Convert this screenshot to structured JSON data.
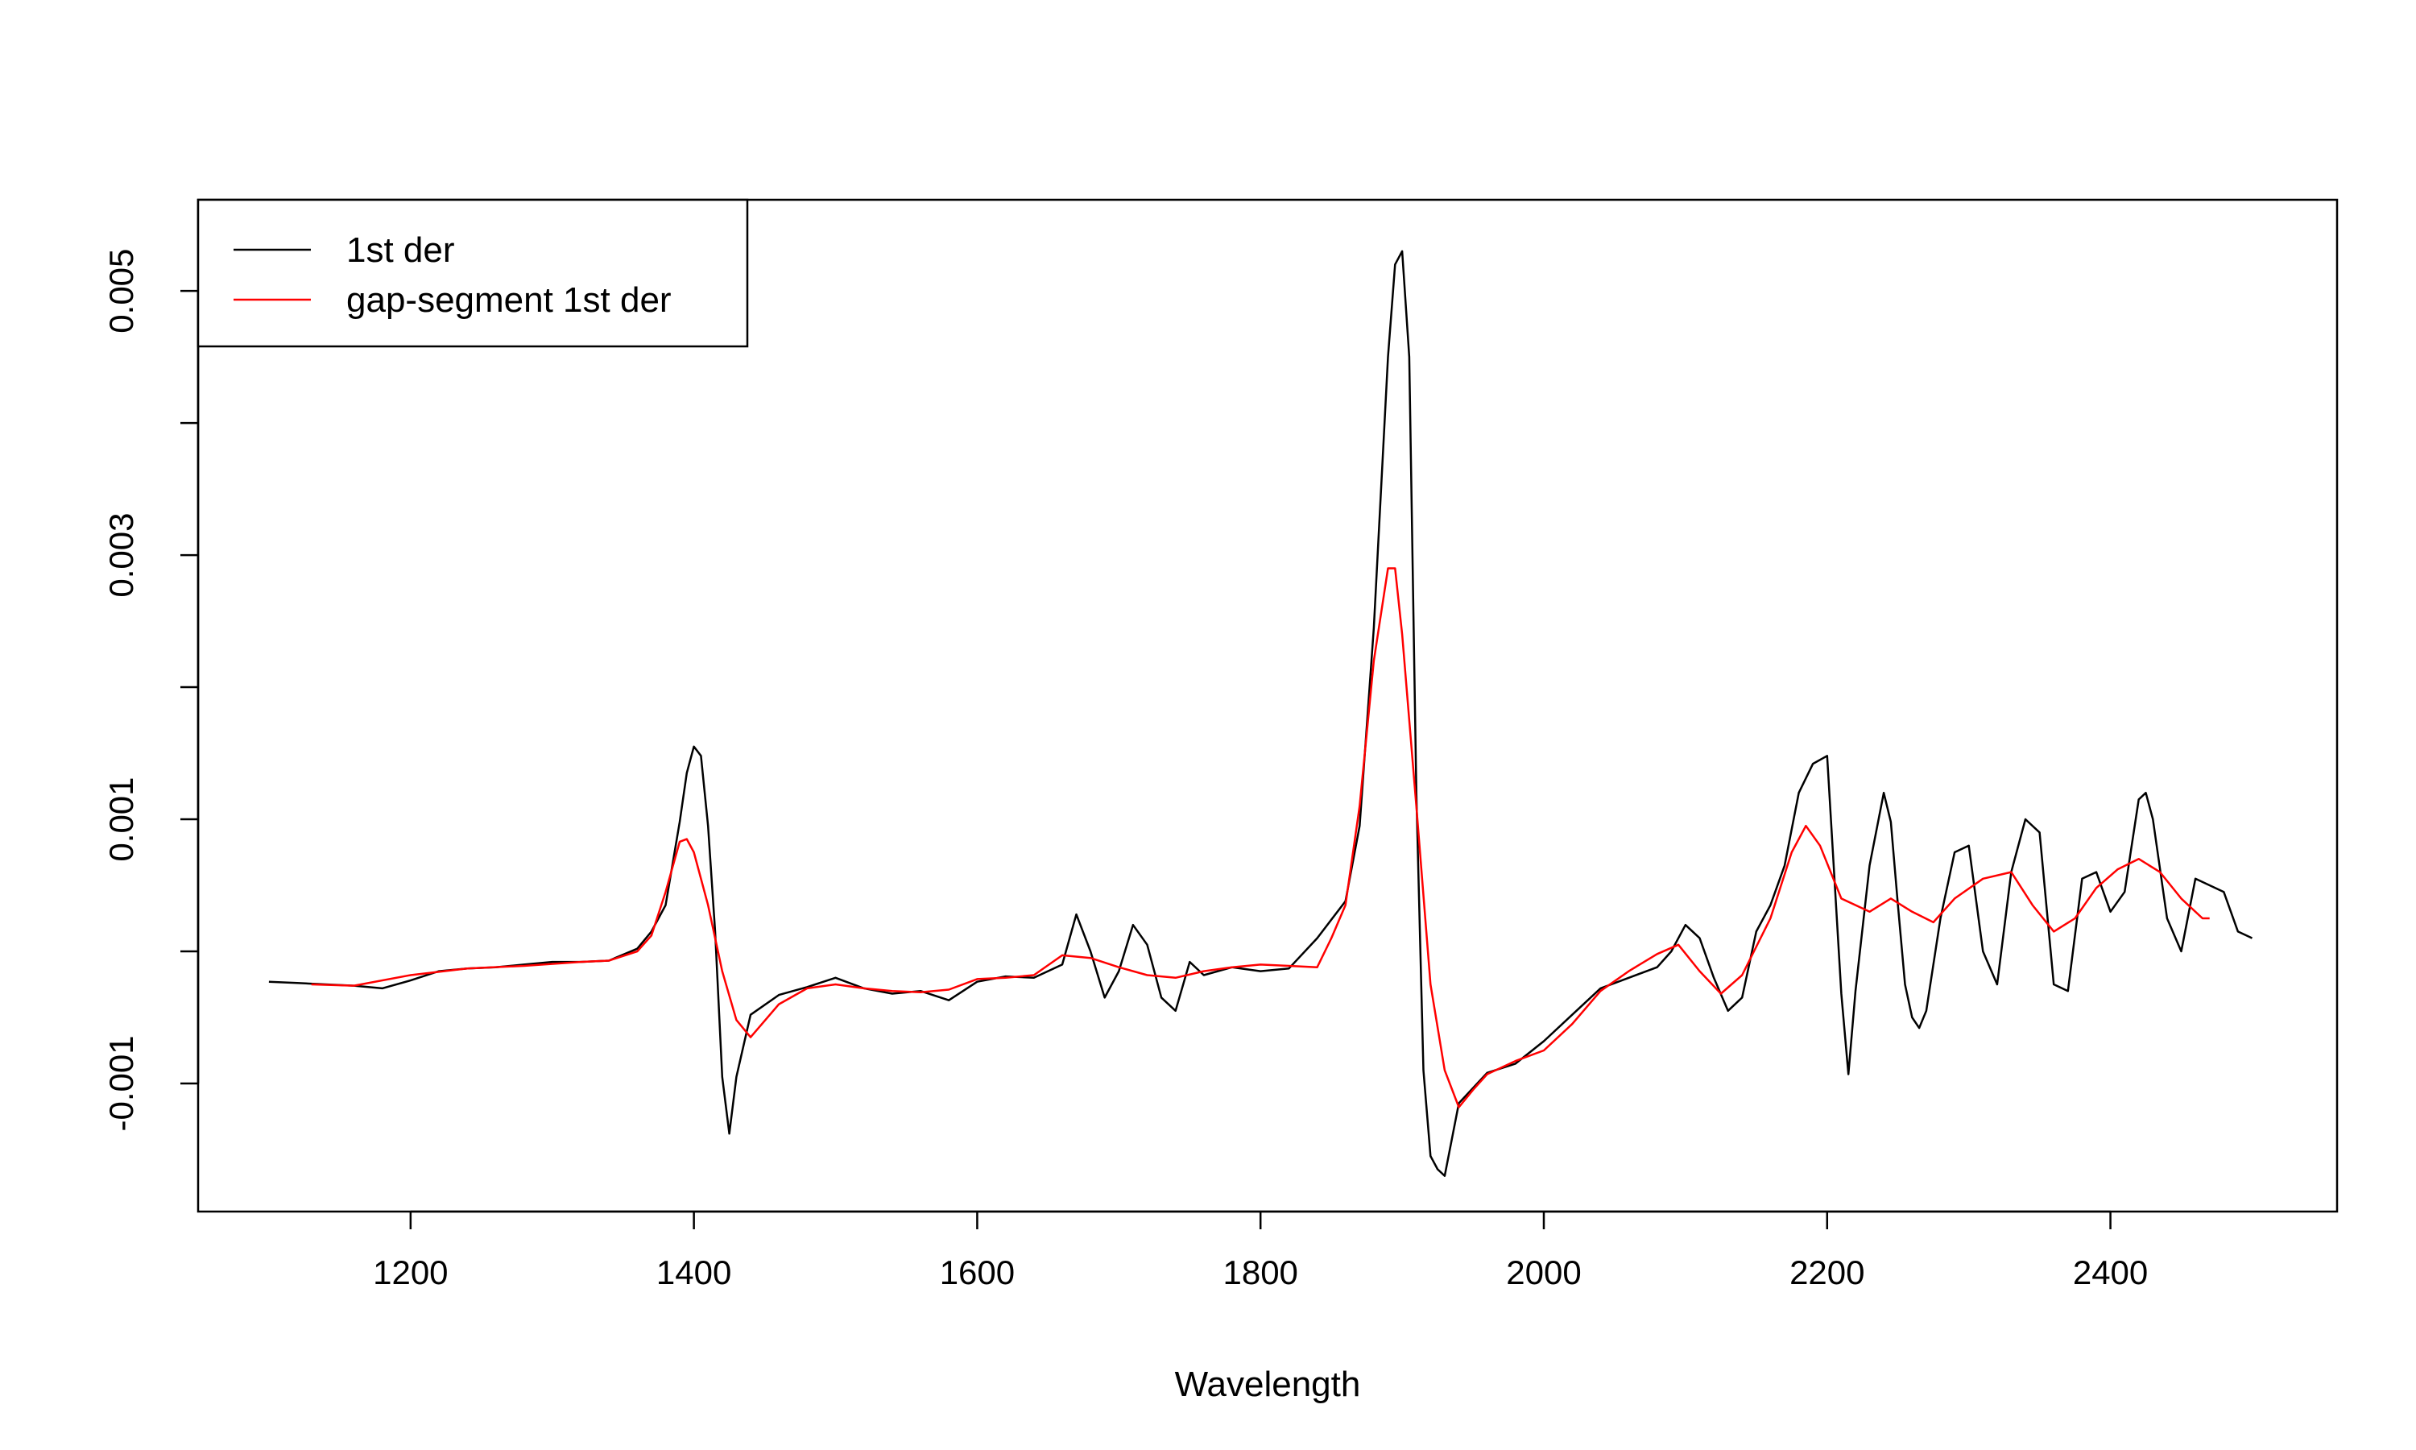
{
  "chart_data": {
    "type": "line",
    "title": "",
    "xlabel": "Wavelength",
    "ylabel": "",
    "xlim": [
      1050,
      2560
    ],
    "ylim": [
      -0.00197,
      0.00569
    ],
    "x_ticks": [
      1200,
      1400,
      1600,
      1800,
      2000,
      2200,
      2400
    ],
    "x_tick_labels": [
      "1200",
      "1400",
      "1600",
      "1800",
      "2000",
      "2200",
      "2400"
    ],
    "y_ticks": [
      -0.001,
      0.0,
      0.001,
      0.002,
      0.003,
      0.004,
      0.005
    ],
    "y_tick_labels": [
      "-0.001",
      "",
      "0.001",
      "",
      "0.003",
      "",
      "0.005"
    ],
    "grid": false,
    "legend": {
      "position": "top-left",
      "entries": [
        {
          "label": "1st der",
          "color": "#000000"
        },
        {
          "label": "gap-segment 1st der",
          "color": "#ff0000"
        }
      ]
    },
    "series": [
      {
        "name": "1st der",
        "color": "#000000",
        "x": [
          1100,
          1120,
          1140,
          1160,
          1180,
          1200,
          1220,
          1240,
          1260,
          1280,
          1300,
          1320,
          1340,
          1360,
          1370,
          1380,
          1390,
          1395,
          1400,
          1405,
          1410,
          1415,
          1420,
          1425,
          1430,
          1440,
          1460,
          1480,
          1500,
          1520,
          1540,
          1560,
          1580,
          1600,
          1620,
          1640,
          1660,
          1670,
          1680,
          1690,
          1700,
          1710,
          1720,
          1730,
          1740,
          1750,
          1760,
          1780,
          1800,
          1820,
          1840,
          1860,
          1870,
          1880,
          1890,
          1895,
          1900,
          1905,
          1910,
          1915,
          1920,
          1925,
          1930,
          1940,
          1960,
          1980,
          2000,
          2020,
          2040,
          2060,
          2080,
          2090,
          2100,
          2110,
          2120,
          2130,
          2140,
          2150,
          2160,
          2170,
          2180,
          2190,
          2200,
          2210,
          2215,
          2220,
          2230,
          2240,
          2245,
          2250,
          2255,
          2260,
          2265,
          2270,
          2280,
          2290,
          2300,
          2310,
          2320,
          2330,
          2340,
          2350,
          2360,
          2370,
          2380,
          2390,
          2400,
          2410,
          2420,
          2425,
          2430,
          2440,
          2450,
          2460,
          2470,
          2480,
          2490,
          2500
        ],
        "values": [
          -0.00023,
          -0.00024,
          -0.00025,
          -0.00026,
          -0.00028,
          -0.00022,
          -0.00015,
          -0.00013,
          -0.00012,
          -0.0001,
          -8e-05,
          -8e-05,
          -7e-05,
          2e-05,
          0.00015,
          0.00035,
          0.00098,
          0.00135,
          0.00155,
          0.00148,
          0.00095,
          0.00015,
          -0.00095,
          -0.00138,
          -0.00095,
          -0.00048,
          -0.00033,
          -0.00027,
          -0.0002,
          -0.00028,
          -0.00032,
          -0.0003,
          -0.00037,
          -0.00023,
          -0.00019,
          -0.0002,
          -0.0001,
          0.00028,
          0.0,
          -0.00035,
          -0.00015,
          0.0002,
          5e-05,
          -0.00035,
          -0.00045,
          -8e-05,
          -0.00018,
          -0.00012,
          -0.00015,
          -0.00013,
          0.0001,
          0.00038,
          0.00095,
          0.00245,
          0.0045,
          0.0052,
          0.0053,
          0.0045,
          0.0012,
          -0.0009,
          -0.00155,
          -0.00165,
          -0.0017,
          -0.00115,
          -0.00092,
          -0.00085,
          -0.00068,
          -0.00048,
          -0.00028,
          -0.0002,
          -0.00012,
          0.0,
          0.0002,
          0.0001,
          -0.0002,
          -0.00045,
          -0.00035,
          0.00015,
          0.00035,
          0.00065,
          0.0012,
          0.00142,
          0.00148,
          -0.00032,
          -0.00093,
          -0.0003,
          0.00065,
          0.0012,
          0.00098,
          0.00035,
          -0.00025,
          -0.0005,
          -0.00058,
          -0.00045,
          0.00025,
          0.00075,
          0.0008,
          0.0,
          -0.00025,
          0.0006,
          0.001,
          0.0009,
          -0.00025,
          -0.0003,
          0.00055,
          0.0006,
          0.0003,
          0.00045,
          0.00115,
          0.0012,
          0.001,
          0.00025,
          0.0,
          0.00055,
          0.0005,
          0.00045,
          0.00015,
          0.0001
        ]
      },
      {
        "name": "gap-segment 1st der",
        "color": "#ff0000",
        "x": [
          1130,
          1160,
          1200,
          1240,
          1280,
          1320,
          1340,
          1360,
          1370,
          1380,
          1390,
          1395,
          1400,
          1410,
          1420,
          1430,
          1440,
          1460,
          1480,
          1500,
          1520,
          1540,
          1560,
          1580,
          1600,
          1620,
          1640,
          1660,
          1680,
          1700,
          1720,
          1740,
          1760,
          1780,
          1800,
          1820,
          1840,
          1850,
          1860,
          1870,
          1880,
          1890,
          1895,
          1900,
          1910,
          1920,
          1930,
          1940,
          1950,
          1960,
          1980,
          2000,
          2020,
          2040,
          2060,
          2080,
          2095,
          2110,
          2125,
          2140,
          2160,
          2175,
          2185,
          2195,
          2210,
          2230,
          2245,
          2260,
          2275,
          2290,
          2310,
          2330,
          2345,
          2360,
          2375,
          2390,
          2405,
          2420,
          2435,
          2450,
          2465,
          2470
        ],
        "values": [
          -0.00025,
          -0.00026,
          -0.00018,
          -0.00013,
          -0.00011,
          -8e-05,
          -7e-05,
          0.0,
          0.00012,
          0.00045,
          0.00083,
          0.00085,
          0.00075,
          0.00035,
          -0.00015,
          -0.00052,
          -0.00065,
          -0.0004,
          -0.00028,
          -0.00025,
          -0.00028,
          -0.0003,
          -0.00031,
          -0.00029,
          -0.00021,
          -0.0002,
          -0.00018,
          -3e-05,
          -5e-05,
          -0.00012,
          -0.00018,
          -0.0002,
          -0.00015,
          -0.00012,
          -0.0001,
          -0.00011,
          -0.00012,
          0.0001,
          0.00035,
          0.0011,
          0.0022,
          0.0029,
          0.0029,
          0.0024,
          0.0011,
          -0.00025,
          -0.0009,
          -0.00118,
          -0.00105,
          -0.00093,
          -0.00083,
          -0.00075,
          -0.00055,
          -0.0003,
          -0.00015,
          -2e-05,
          5e-05,
          -0.00015,
          -0.00032,
          -0.00018,
          0.00025,
          0.00075,
          0.00095,
          0.0008,
          0.0004,
          0.0003,
          0.0004,
          0.0003,
          0.00022,
          0.0004,
          0.00055,
          0.0006,
          0.00035,
          0.00015,
          0.00025,
          0.00048,
          0.00062,
          0.0007,
          0.0006,
          0.0004,
          0.00025,
          0.00025
        ]
      }
    ]
  }
}
